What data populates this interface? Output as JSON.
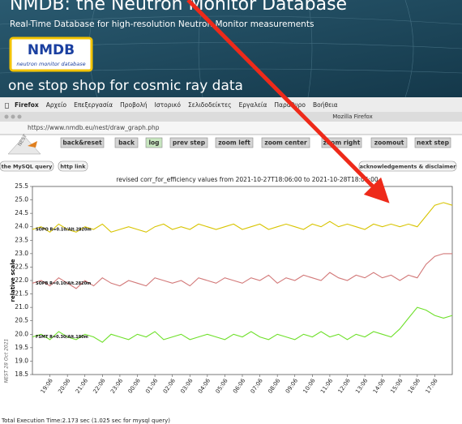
{
  "banner": {
    "title": "NMDB: the Neutron Monitor Database",
    "subtitle": "Real-Time Database for high-resolution Neutron Monitor measurements",
    "logo": "NMDB",
    "logo_caption": "neutron monitor database",
    "tagline": "one stop shop for cosmic ray data"
  },
  "menubar": {
    "items": [
      "Firefox",
      "Αρχείο",
      "Επεξεργασία",
      "Προβολή",
      "Ιστορικό",
      "Σελιδοδείκτες",
      "Εργαλεία",
      "Παράθυρο",
      "Βοήθεια"
    ]
  },
  "window_title": "Mozilla Firefox",
  "url": "https://www.nmdb.eu/nest/draw_graph.php",
  "nest_logo": "NEST",
  "toolbar": {
    "buttons": [
      "back&reset",
      "back",
      "log",
      "prev step",
      "zoom left",
      "zoom center",
      "zoom right",
      "zoomout",
      "next step"
    ]
  },
  "links": [
    "the MySQL query",
    "http link",
    "acknowledgements & disclaimer"
  ],
  "chart_data": {
    "type": "line",
    "title": "revised corr_for_efficiency values from 2021-10-27T18:06:00 to 2021-10-28T18:06:00",
    "y_label": "relative scale",
    "xtick_labels": [
      "19:06",
      "20:06",
      "21:06",
      "22:06",
      "23:06",
      "00:06",
      "01:06",
      "02:06",
      "03:06",
      "04:06",
      "05:06",
      "06:06",
      "07:06",
      "08:06",
      "09:06",
      "10:06",
      "11:06",
      "12:06",
      "13:06",
      "14:06",
      "15:06",
      "16:06",
      "17:06"
    ],
    "ylim": [
      18.5,
      25.5
    ],
    "yticks": [
      18.5,
      {
        "value": 19,
        "label": "19.0"
      },
      19.5,
      {
        "value": 20,
        "label": "20.0"
      },
      20.5,
      {
        "value": 21,
        "label": "21.0"
      },
      21.5,
      {
        "value": 22,
        "label": "22.0"
      },
      22.5,
      {
        "value": 23,
        "label": "23.0"
      },
      23.5,
      {
        "value": 24,
        "label": "24.0"
      },
      24.5,
      {
        "value": 25,
        "label": "25.0"
      },
      25.5
    ],
    "series": [
      {
        "name": "SOPO R=0.10/Alt.2820m",
        "color": "#d8c400",
        "values": [
          23.9,
          24.0,
          23.8,
          24.1,
          23.9,
          23.8,
          24.0,
          23.9,
          24.1,
          23.8,
          23.9,
          24.0,
          23.9,
          23.8,
          24.0,
          24.1,
          23.9,
          24.0,
          23.9,
          24.1,
          24.0,
          23.9,
          24.0,
          24.1,
          23.9,
          24.0,
          24.1,
          23.9,
          24.0,
          24.1,
          24.0,
          23.9,
          24.1,
          24.0,
          24.2,
          24.0,
          24.1,
          24.0,
          23.9,
          24.1,
          24.0,
          24.1,
          24.0,
          24.1,
          24.0,
          24.4,
          24.8,
          24.9,
          24.8
        ]
      },
      {
        "name": "SOPB R=0.10/Alt.2820m",
        "color": "#d27878",
        "values": [
          21.9,
          22.0,
          21.8,
          22.1,
          21.9,
          21.7,
          22.0,
          21.8,
          22.1,
          21.9,
          21.8,
          22.0,
          21.9,
          21.8,
          22.1,
          22.0,
          21.9,
          22.0,
          21.8,
          22.1,
          22.0,
          21.9,
          22.1,
          22.0,
          21.9,
          22.1,
          22.0,
          22.2,
          21.9,
          22.1,
          22.0,
          22.2,
          22.1,
          22.0,
          22.3,
          22.1,
          22.0,
          22.2,
          22.1,
          22.3,
          22.1,
          22.2,
          22.0,
          22.2,
          22.1,
          22.6,
          22.9,
          23.0,
          23.0
        ]
      },
      {
        "name": "FSMT R=0.30/Alt.180m",
        "color": "#6ee02a",
        "values": [
          19.9,
          20.0,
          19.8,
          20.1,
          19.9,
          19.8,
          20.0,
          19.9,
          19.7,
          20.0,
          19.9,
          19.8,
          20.0,
          19.9,
          20.1,
          19.8,
          19.9,
          20.0,
          19.8,
          19.9,
          20.0,
          19.9,
          19.8,
          20.0,
          19.9,
          20.1,
          19.9,
          19.8,
          20.0,
          19.9,
          19.8,
          20.0,
          19.9,
          20.1,
          19.9,
          20.0,
          19.8,
          20.0,
          19.9,
          20.1,
          20.0,
          19.9,
          20.2,
          20.6,
          21.0,
          20.9,
          20.7,
          20.6,
          20.7
        ]
      }
    ]
  },
  "side_note": "NEST 28 Oct 2021",
  "footer": "Total Execution Time:2.173 sec (1.025 sec for mysql query)"
}
